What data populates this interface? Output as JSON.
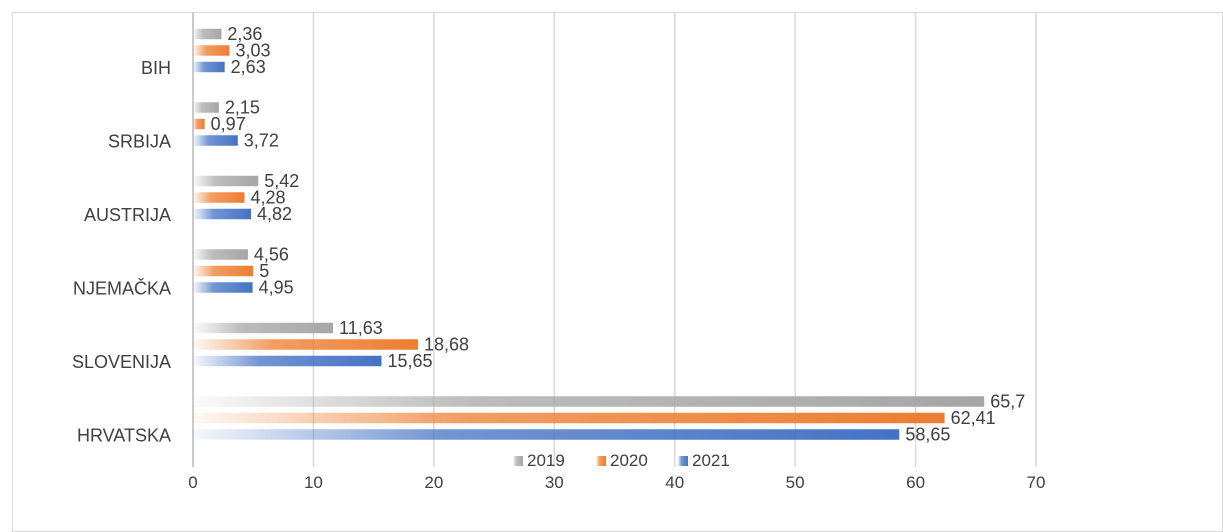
{
  "chart_data": {
    "type": "bar",
    "orientation": "horizontal",
    "categories": [
      "BIH",
      "SRBIJA",
      "AUSTRIJA",
      "NJEMAČKA",
      "SLOVENIJA",
      "HRVATSKA"
    ],
    "series": [
      {
        "name": "2019",
        "values": [
          2.36,
          2.15,
          5.42,
          4.56,
          11.63,
          65.7
        ],
        "labels": [
          "2,36",
          "2,15",
          "5,42",
          "4,56",
          "11,63",
          "65,7"
        ],
        "color": "#a6a6a6"
      },
      {
        "name": "2020",
        "values": [
          3.03,
          0.97,
          4.28,
          5,
          18.68,
          62.41
        ],
        "labels": [
          "3,03",
          "0,97",
          "4,28",
          "5",
          "18,68",
          "62,41"
        ],
        "color": "#ed7d31"
      },
      {
        "name": "2021",
        "values": [
          2.63,
          3.72,
          4.82,
          4.95,
          15.65,
          58.65
        ],
        "labels": [
          "2,63",
          "3,72",
          "4,82",
          "4,95",
          "15,65",
          "58,65"
        ],
        "color": "#4472c4"
      }
    ],
    "xlim": [
      0,
      70
    ],
    "xticks": [
      "0",
      "10",
      "20",
      "30",
      "40",
      "50",
      "60",
      "70"
    ],
    "grid": true,
    "legend_position": "bottom",
    "bar_style": "gradient"
  }
}
